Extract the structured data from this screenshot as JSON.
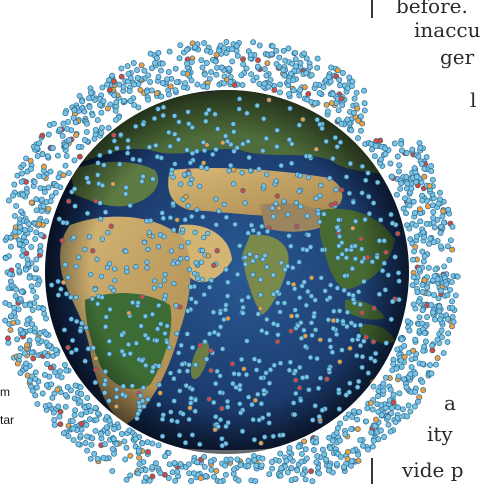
{
  "figure": {
    "left_labels": [
      "m",
      "tar"
    ]
  },
  "article_text": {
    "fragments": [
      "before.",
      "inaccu",
      "ger",
      "l",
      "a",
      "ity",
      "vide p"
    ]
  },
  "colors": {
    "satellite_fill": "#79c3e6",
    "satellite_stroke": "#2f6d8f",
    "satellite_orange": "#f0a040",
    "satellite_red": "#d9463a",
    "ocean": "#1c3d73",
    "land_desert": "#c7a86a",
    "land_green": "#3d6b34"
  }
}
